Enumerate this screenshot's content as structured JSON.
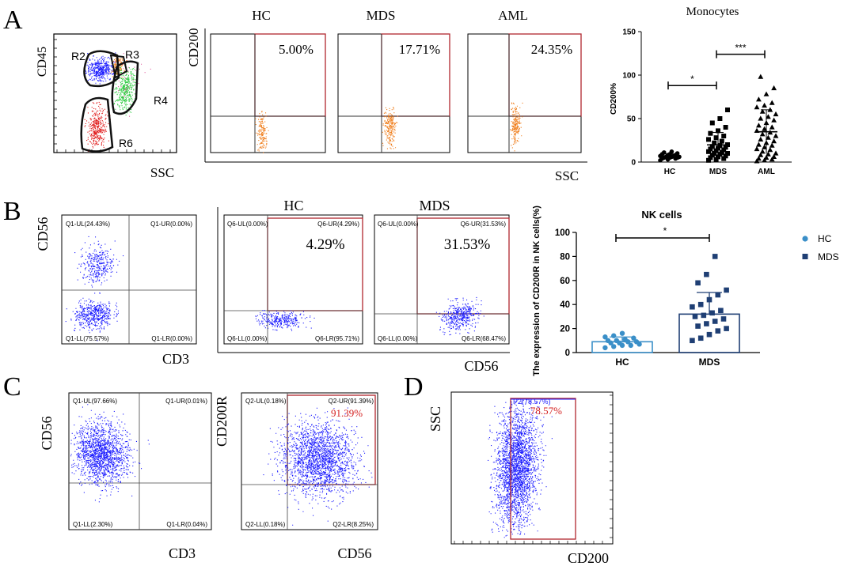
{
  "colors": {
    "gate_red": "#b0262e",
    "event_blue": "#1a1aff",
    "event_orange": "#f07d1a",
    "event_green": "#2ecc40",
    "event_red": "#e01515",
    "hc_color": "#3a8fc8",
    "mds_color": "#1f3f74",
    "pct_red": "#d42020"
  },
  "panelA": {
    "letter": "A",
    "gate_plot": {
      "ylabel": "CD45",
      "xlabel": "SSC",
      "gates": [
        "R2",
        "R3",
        "R4",
        "R6"
      ]
    },
    "quad_plots": {
      "ylabel": "CD200",
      "xlabel": "SSC",
      "items": [
        {
          "title": "HC",
          "pct": "5.00%"
        },
        {
          "title": "MDS",
          "pct": "17.71%"
        },
        {
          "title": "AML",
          "pct": "24.35%"
        }
      ]
    }
  },
  "panelB": {
    "letter": "B",
    "left_plot": {
      "ylabel": "CD56",
      "xlabel": "CD3",
      "q_ul": "Q1-UL(24.43%)",
      "q_ur": "Q1-UR(0.00%)",
      "q_ll": "Q1-LL(75.57%)",
      "q_lr": "Q1-LR(0.00%)"
    },
    "pair_xlabel": "CD56",
    "hc_plot": {
      "title": "HC",
      "pct": "4.29%",
      "q_ul": "Q6-UL(0.00%)",
      "q_ur": "Q6-UR(4.29%)",
      "q_ll": "Q6-LL(0.00%)",
      "q_lr": "Q6-LR(95.71%)"
    },
    "mds_plot": {
      "title": "MDS",
      "pct": "31.53%",
      "q_ul": "Q6-UL(0.00%)",
      "q_ur": "Q6-UR(31.53%)",
      "q_ll": "Q6-LL(0.00%)",
      "q_lr": "Q6-LR(68.47%)"
    }
  },
  "panelC": {
    "letter": "C",
    "left_plot": {
      "ylabel": "CD56",
      "xlabel": "CD3",
      "q_ul": "Q1-UL(97.66%)",
      "q_ur": "Q1-UR(0.01%)",
      "q_ll": "Q1-LL(2.30%)",
      "q_lr": "Q1-LR(0.04%)"
    },
    "right_plot": {
      "ylabel": "CD200R",
      "xlabel": "CD56",
      "pct": "91.39%",
      "q_ul": "Q2-UL(0.18%)",
      "q_ur": "Q2-UR(91.39%)",
      "q_ll": "Q2-LL(0.18%)",
      "q_lr": "Q2-LR(8.25%)"
    }
  },
  "panelD": {
    "letter": "D",
    "ylabel": "SSC",
    "xlabel": "CD200",
    "gate_label": "P2(78.57%)",
    "pct": "78.57%"
  },
  "chart_data": [
    {
      "type": "scatter",
      "title": "Monocytes",
      "ylabel": "CD200%",
      "categories": [
        "HC",
        "MDS",
        "AML"
      ],
      "ylim": [
        0,
        150
      ],
      "yticks": [
        "0",
        "50",
        "100",
        "150"
      ],
      "series": [
        {
          "name": "HC",
          "marker": "circle",
          "values": [
            2,
            3,
            4,
            4,
            5,
            5,
            5,
            6,
            6,
            6,
            7,
            7,
            8,
            8,
            9,
            9,
            10,
            11,
            12
          ]
        },
        {
          "name": "MDS",
          "marker": "square",
          "values": [
            2,
            3,
            4,
            5,
            6,
            7,
            8,
            9,
            10,
            10,
            11,
            12,
            13,
            14,
            15,
            16,
            17,
            18,
            19,
            20,
            22,
            24,
            26,
            28,
            30,
            33,
            36,
            40,
            45,
            50,
            60
          ]
        },
        {
          "name": "AML",
          "marker": "triangle",
          "values": [
            1,
            2,
            3,
            4,
            5,
            6,
            8,
            9,
            10,
            12,
            14,
            15,
            17,
            19,
            20,
            22,
            24,
            26,
            28,
            30,
            32,
            34,
            36,
            38,
            40,
            42,
            45,
            48,
            50,
            52,
            55,
            58,
            60,
            63,
            65,
            68,
            72,
            78,
            85,
            98
          ]
        }
      ],
      "bracket_labels": [
        "*",
        "***"
      ]
    },
    {
      "type": "bar",
      "title": "NK cells",
      "ylabel": "The expression of CD200R in NK cells(%)",
      "categories": [
        "HC",
        "MDS"
      ],
      "values": [
        9,
        32
      ],
      "error": [
        4,
        18
      ],
      "ylim": [
        0,
        100
      ],
      "yticks": [
        "0",
        "20",
        "40",
        "60",
        "80",
        "100"
      ],
      "legend": [
        "HC",
        "MDS"
      ],
      "legend_position": "right",
      "bracket_labels": [
        "*"
      ],
      "points": {
        "HC": [
          4,
          5,
          6,
          6,
          7,
          8,
          8,
          9,
          9,
          10,
          10,
          11,
          12,
          13,
          14,
          16
        ],
        "MDS": [
          10,
          12,
          15,
          18,
          20,
          22,
          24,
          26,
          28,
          30,
          31,
          33,
          35,
          38,
          40,
          44,
          48,
          52,
          58,
          65,
          80
        ]
      }
    }
  ]
}
